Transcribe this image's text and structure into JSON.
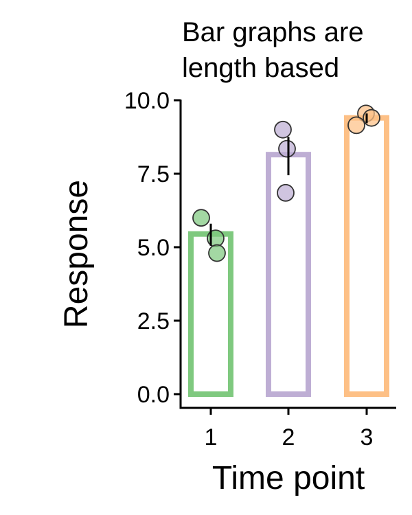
{
  "chart_data": {
    "type": "bar",
    "title_lines": [
      "Bar graphs are",
      "length based"
    ],
    "xlabel": "Time point",
    "ylabel": "Response",
    "categories": [
      "1",
      "2",
      "3"
    ],
    "values": [
      5.45,
      8.15,
      9.4
    ],
    "error": [
      {
        "low": 5.05,
        "high": 5.8
      },
      {
        "low": 7.45,
        "high": 8.75
      },
      {
        "low": 9.22,
        "high": 9.55
      }
    ],
    "points": [
      [
        6.0,
        5.3,
        4.8
      ],
      [
        9.0,
        8.35,
        6.85
      ],
      [
        9.55,
        9.15,
        9.4
      ]
    ],
    "colors": [
      "#7fc97f",
      "#beaed4",
      "#fdc086"
    ],
    "ylim": [
      0,
      10
    ],
    "yticks": [
      "0.0",
      "2.5",
      "5.0",
      "7.5",
      "10.0"
    ],
    "grid": false,
    "legend": "none"
  }
}
